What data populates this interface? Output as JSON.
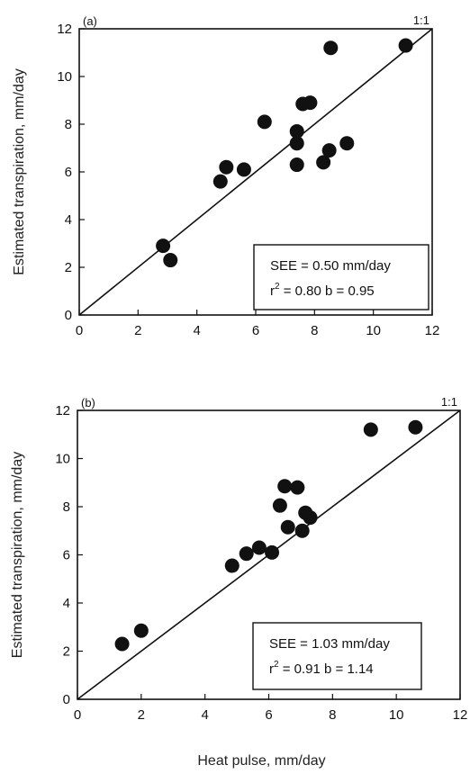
{
  "chart_data": [
    {
      "type": "scatter",
      "panel_label": "(a)",
      "ratio_label": "1:1",
      "ylabel": "Estimated transpiration, mm/day",
      "xlabel": "",
      "xlim": [
        0,
        12
      ],
      "ylim": [
        0,
        12
      ],
      "xticks": [
        "0",
        "2",
        "4",
        "6",
        "8",
        "10",
        "12"
      ],
      "yticks": [
        "0",
        "2",
        "4",
        "6",
        "8",
        "10",
        "12"
      ],
      "points": [
        {
          "x": 2.85,
          "y": 2.9
        },
        {
          "x": 3.1,
          "y": 2.3
        },
        {
          "x": 4.8,
          "y": 5.6
        },
        {
          "x": 5.0,
          "y": 6.2
        },
        {
          "x": 5.6,
          "y": 6.1
        },
        {
          "x": 6.3,
          "y": 8.1
        },
        {
          "x": 7.4,
          "y": 7.7
        },
        {
          "x": 7.4,
          "y": 7.2
        },
        {
          "x": 7.4,
          "y": 6.3
        },
        {
          "x": 7.6,
          "y": 8.85
        },
        {
          "x": 7.85,
          "y": 8.9
        },
        {
          "x": 8.3,
          "y": 6.4
        },
        {
          "x": 8.5,
          "y": 6.9
        },
        {
          "x": 9.1,
          "y": 7.2
        },
        {
          "x": 8.55,
          "y": 11.2
        },
        {
          "x": 11.1,
          "y": 11.3
        }
      ],
      "stats": {
        "see": "SEE = 0.50 mm/day",
        "r2_prefix": "r",
        "r2_sup": "2",
        "r2_rest": " = 0.80   b = 0.95"
      }
    },
    {
      "type": "scatter",
      "panel_label": "(b)",
      "ratio_label": "1:1",
      "ylabel": "Estimated transpiration, mm/day",
      "xlabel": "Heat pulse, mm/day",
      "xlim": [
        0,
        12
      ],
      "ylim": [
        0,
        12
      ],
      "xticks": [
        "0",
        "2",
        "4",
        "6",
        "8",
        "10",
        "12"
      ],
      "yticks": [
        "0",
        "2",
        "4",
        "6",
        "8",
        "10",
        "12"
      ],
      "points": [
        {
          "x": 1.4,
          "y": 2.3
        },
        {
          "x": 2.0,
          "y": 2.85
        },
        {
          "x": 4.85,
          "y": 5.55
        },
        {
          "x": 5.3,
          "y": 6.05
        },
        {
          "x": 5.7,
          "y": 6.3
        },
        {
          "x": 6.1,
          "y": 6.1
        },
        {
          "x": 6.35,
          "y": 8.05
        },
        {
          "x": 6.5,
          "y": 8.85
        },
        {
          "x": 6.6,
          "y": 7.15
        },
        {
          "x": 6.9,
          "y": 8.8
        },
        {
          "x": 7.05,
          "y": 7.0
        },
        {
          "x": 7.15,
          "y": 7.75
        },
        {
          "x": 7.3,
          "y": 7.55
        },
        {
          "x": 9.2,
          "y": 11.2
        },
        {
          "x": 10.6,
          "y": 11.3
        }
      ],
      "stats": {
        "see": "SEE = 1.03 mm/day",
        "r2_prefix": "r",
        "r2_sup": "2",
        "r2_rest": " = 0.91   b = 1.14"
      }
    }
  ]
}
